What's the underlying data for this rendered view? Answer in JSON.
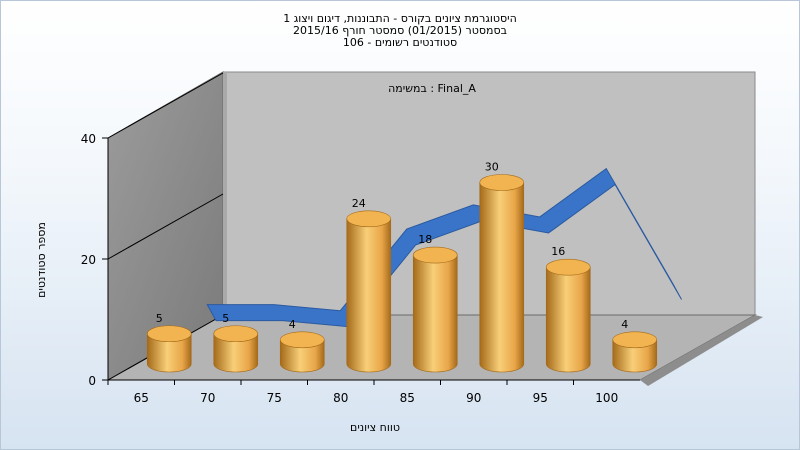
{
  "titles": {
    "line1": "היסטוגרמת ציונים בקורס - התבוננות, דיגום ויצוג 1",
    "line2": "בסמסטר  (01/2015)  סמסטר חורף 2015/16",
    "line3": "סטודנטים רשומים - 106"
  },
  "chart_data": {
    "type": "bar",
    "title": "היסטוגרמת ציונים בקורס - התבוננות, דיגום ויצוג 1",
    "subtitle": [
      "בסמסטר  (01/2015)  סמסטר חורף 2015/16",
      "סטודנטים רשומים - 106"
    ],
    "annotation": "במשימה : Final_A",
    "xlabel": "טווח ציונים",
    "ylabel": "מספר סטודנטים",
    "categories": [
      "65",
      "70",
      "75",
      "80",
      "85",
      "90",
      "95",
      "100"
    ],
    "values": [
      5,
      5,
      4,
      24,
      18,
      30,
      16,
      4
    ],
    "curve_values": [
      6.5,
      6.5,
      5.5,
      19,
      23,
      21,
      29,
      10
    ],
    "ylim": [
      0,
      40
    ],
    "yticks": [
      0,
      20,
      40
    ],
    "grid": false,
    "colors": {
      "bar_light": "#f8cf78",
      "bar_mid": "#e8a548",
      "bar_dark": "#a46a1a",
      "bar_top": "#f2b450",
      "curve": "#3a74c8",
      "curve_dark": "#2a5aa0",
      "back_wall": "#c0c0c0",
      "side_wall": "#7a7a7a",
      "floor": "#b4b4b4",
      "axis": "#000000"
    }
  }
}
